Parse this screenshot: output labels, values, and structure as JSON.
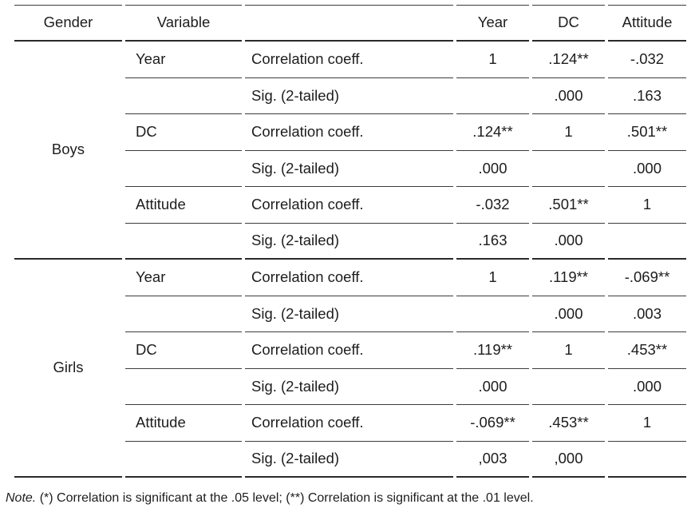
{
  "page": {
    "background": "#ffffff",
    "text_color": "#1d1d1d",
    "rule_color": "#3c3c3c"
  },
  "table": {
    "headers": {
      "gender": "Gender",
      "variable": "Variable",
      "measure": "",
      "year": "Year",
      "dc": "DC",
      "attitude": "Attitude"
    },
    "groups": [
      {
        "gender": "Boys",
        "rows": [
          {
            "variable": "Year",
            "measure": "Correlation coeff.",
            "year": "1",
            "dc": ".124**",
            "attitude": "-.032"
          },
          {
            "variable": "",
            "measure": "Sig. (2-tailed)",
            "year": "",
            "dc": ".000",
            "attitude": ".163"
          },
          {
            "variable": "DC",
            "measure": "Correlation coeff.",
            "year": ".124**",
            "dc": "1",
            "attitude": ".501**"
          },
          {
            "variable": "",
            "measure": "Sig. (2-tailed)",
            "year": ".000",
            "dc": "",
            "attitude": ".000"
          },
          {
            "variable": "Attitude",
            "measure": "Correlation coeff.",
            "year": "-.032",
            "dc": ".501**",
            "attitude": "1"
          },
          {
            "variable": "",
            "measure": "Sig. (2-tailed)",
            "year": ".163",
            "dc": ".000",
            "attitude": ""
          }
        ]
      },
      {
        "gender": "Girls",
        "rows": [
          {
            "variable": "Year",
            "measure": "Correlation coeff.",
            "year": "1",
            "dc": ".119**",
            "attitude": "-.069**"
          },
          {
            "variable": "",
            "measure": "Sig. (2-tailed)",
            "year": "",
            "dc": ".000",
            "attitude": ".003"
          },
          {
            "variable": "DC",
            "measure": "Correlation coeff.",
            "year": ".119**",
            "dc": "1",
            "attitude": ".453**"
          },
          {
            "variable": "",
            "measure": "Sig. (2-tailed)",
            "year": ".000",
            "dc": "",
            "attitude": ".000"
          },
          {
            "variable": "Attitude",
            "measure": "Correlation coeff.",
            "year": "-.069**",
            "dc": ".453**",
            "attitude": "1"
          },
          {
            "variable": "",
            "measure": "Sig. (2-tailed)",
            "year": ",003",
            "dc": ",000",
            "attitude": ""
          }
        ]
      }
    ]
  },
  "note": {
    "label": "Note.",
    "text": " (*) Correlation is significant at the .05 level; (**) Correlation is significant at the .01 level."
  }
}
